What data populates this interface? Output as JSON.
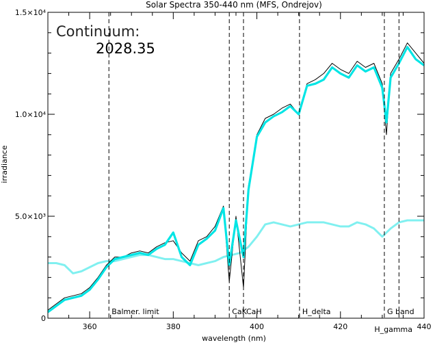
{
  "chart_data": {
    "type": "line",
    "title": "Solar Spectra 350-440 nm (MFS, Ondrejov)",
    "xlabel": "wavelength (nm)",
    "ylabel": "irradiance",
    "xlim": [
      350,
      440
    ],
    "ylim": [
      0,
      15000
    ],
    "x_ticks": [
      {
        "value": 360,
        "label": "360"
      },
      {
        "value": 380,
        "label": "380"
      },
      {
        "value": 400,
        "label": "400"
      },
      {
        "value": 420,
        "label": "420"
      },
      {
        "value": 440,
        "label": "440"
      }
    ],
    "y_ticks": [
      {
        "value": 0,
        "label": "0"
      },
      {
        "value": 5000,
        "label": "5.0×10³"
      },
      {
        "value": 10000,
        "label": "1.0×10⁴"
      },
      {
        "value": 15000,
        "label": "1.5×10⁴"
      }
    ],
    "grid": false,
    "continuum_label": "Continuum:",
    "continuum_value": "2028.35",
    "annotations": [
      {
        "x": 364.6,
        "label": "Balmer. limit"
      },
      {
        "x": 393.4,
        "label": "CaK"
      },
      {
        "x": 396.8,
        "label": "CaH"
      },
      {
        "x": 410.2,
        "label": "H_delta"
      },
      {
        "x": 430.5,
        "label": "G band"
      },
      {
        "x": 434.0,
        "label": "H_gamma"
      }
    ],
    "series": [
      {
        "color": "#000000",
        "style": "raw",
        "x": [
          350,
          352,
          354,
          356,
          358,
          360,
          362,
          364,
          366,
          368,
          370,
          372,
          374,
          376,
          378,
          380,
          382,
          384,
          386,
          388,
          390,
          392,
          393.4,
          395,
          396.8,
          398,
          400,
          402,
          404,
          406,
          408,
          410,
          412,
          414,
          416,
          418,
          420,
          422,
          424,
          426,
          428,
          430,
          431,
          432,
          434,
          436,
          438,
          440
        ],
        "values": [
          400,
          700,
          1000,
          1100,
          1200,
          1500,
          2000,
          2600,
          3000,
          3000,
          3200,
          3300,
          3200,
          3500,
          3700,
          3800,
          3200,
          2800,
          3800,
          4000,
          4500,
          5500,
          1800,
          5000,
          1500,
          6500,
          9000,
          9800,
          10000,
          10300,
          10500,
          10000,
          11500,
          11700,
          12000,
          12500,
          12200,
          12000,
          12600,
          12300,
          12500,
          11500,
          9000,
          12000,
          12700,
          13500,
          13000,
          12500
        ]
      },
      {
        "color": "#00e5e5",
        "style": "smoothed",
        "x": [
          350,
          352,
          354,
          356,
          358,
          360,
          362,
          364,
          366,
          368,
          370,
          372,
          374,
          376,
          378,
          380,
          382,
          384,
          386,
          388,
          390,
          392,
          393.4,
          395,
          396.8,
          398,
          400,
          402,
          404,
          406,
          408,
          410,
          412,
          414,
          416,
          418,
          420,
          422,
          424,
          426,
          428,
          430,
          431,
          432,
          434,
          436,
          438,
          440
        ],
        "values": [
          300,
          600,
          900,
          1000,
          1100,
          1400,
          1900,
          2500,
          2900,
          3000,
          3100,
          3200,
          3100,
          3400,
          3600,
          4200,
          3000,
          2600,
          3600,
          3900,
          4300,
          5400,
          2600,
          4800,
          3000,
          6300,
          8900,
          9600,
          9900,
          10100,
          10400,
          10000,
          11400,
          11500,
          11700,
          12300,
          12000,
          11800,
          12400,
          12100,
          12300,
          11300,
          9600,
          11800,
          12500,
          13300,
          12700,
          12400
        ]
      },
      {
        "color": "#80f0f0",
        "style": "reference",
        "x": [
          350,
          352,
          354,
          356,
          358,
          360,
          362,
          364,
          366,
          368,
          370,
          372,
          374,
          376,
          378,
          380,
          382,
          384,
          386,
          388,
          390,
          392,
          394,
          396,
          398,
          400,
          402,
          404,
          406,
          408,
          410,
          412,
          414,
          416,
          418,
          420,
          422,
          424,
          426,
          428,
          430,
          432,
          434,
          436,
          438,
          440
        ],
        "values": [
          2700,
          2700,
          2600,
          2200,
          2300,
          2500,
          2700,
          2800,
          2800,
          2900,
          3000,
          3100,
          3100,
          3000,
          2900,
          2900,
          2800,
          2700,
          2600,
          2700,
          2800,
          3000,
          3100,
          3200,
          3500,
          4000,
          4600,
          4700,
          4600,
          4500,
          4600,
          4700,
          4700,
          4700,
          4600,
          4500,
          4500,
          4700,
          4600,
          4400,
          4000,
          4400,
          4700,
          4800,
          4800,
          4800
        ]
      }
    ]
  }
}
